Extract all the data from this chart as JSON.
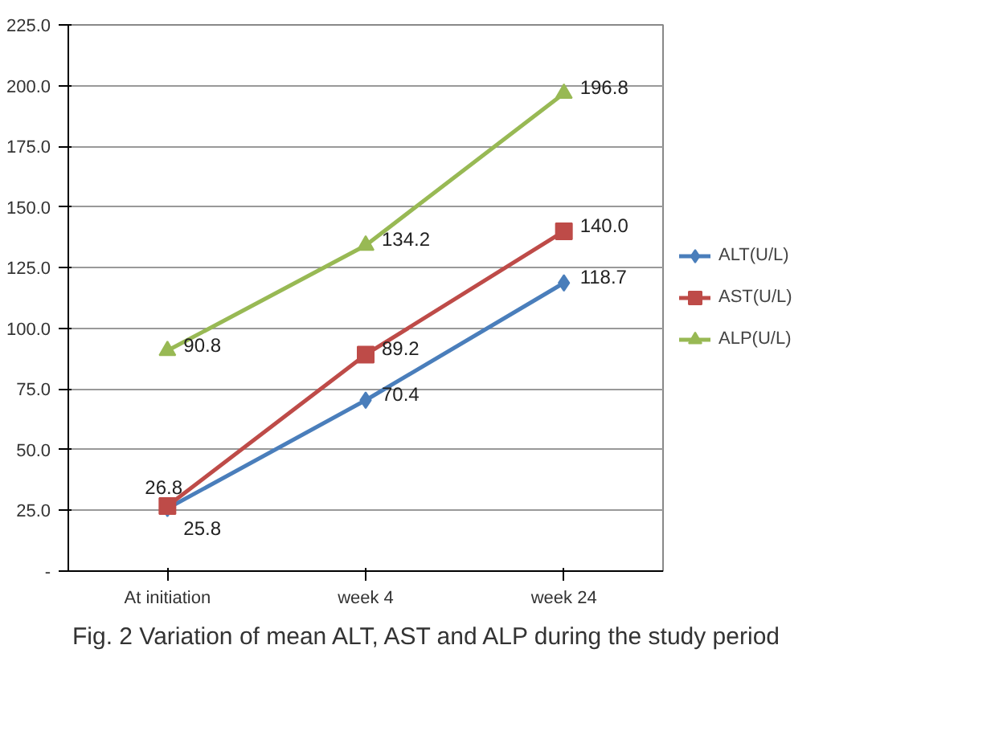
{
  "chart_data": {
    "type": "line",
    "categories": [
      "At initiation",
      "week 4",
      "week 24"
    ],
    "series": [
      {
        "name": "ALT(U/L)",
        "color": "#4a7ebb",
        "marker": "diamond",
        "values": [
          25.8,
          70.4,
          118.7
        ],
        "value_labels": [
          "25.8",
          "70.4",
          "118.7"
        ]
      },
      {
        "name": "AST(U/L)",
        "color": "#be4b48",
        "marker": "square",
        "values": [
          26.8,
          89.2,
          140.0
        ],
        "value_labels": [
          "26.8",
          "89.2",
          "140.0"
        ]
      },
      {
        "name": "ALP(U/L)",
        "color": "#98b954",
        "marker": "triangle",
        "values": [
          90.8,
          134.2,
          196.8
        ],
        "value_labels": [
          "90.8",
          "134.2",
          "196.8"
        ]
      }
    ],
    "ylim": [
      0,
      225
    ],
    "yticks": [
      {
        "value": 0,
        "label": "-"
      },
      {
        "value": 25,
        "label": "25.0"
      },
      {
        "value": 50,
        "label": "50.0"
      },
      {
        "value": 75,
        "label": "75.0"
      },
      {
        "value": 100,
        "label": "100.0"
      },
      {
        "value": 125,
        "label": "125.0"
      },
      {
        "value": 150,
        "label": "150.0"
      },
      {
        "value": 175,
        "label": "175.0"
      },
      {
        "value": 200,
        "label": "200.0"
      },
      {
        "value": 225,
        "label": "225.0"
      }
    ],
    "grid": "y",
    "legend": "right",
    "line_style": "solid",
    "annotations": [
      "Fig. 2  Variation of mean ALT, AST and ALP during the study period"
    ]
  }
}
